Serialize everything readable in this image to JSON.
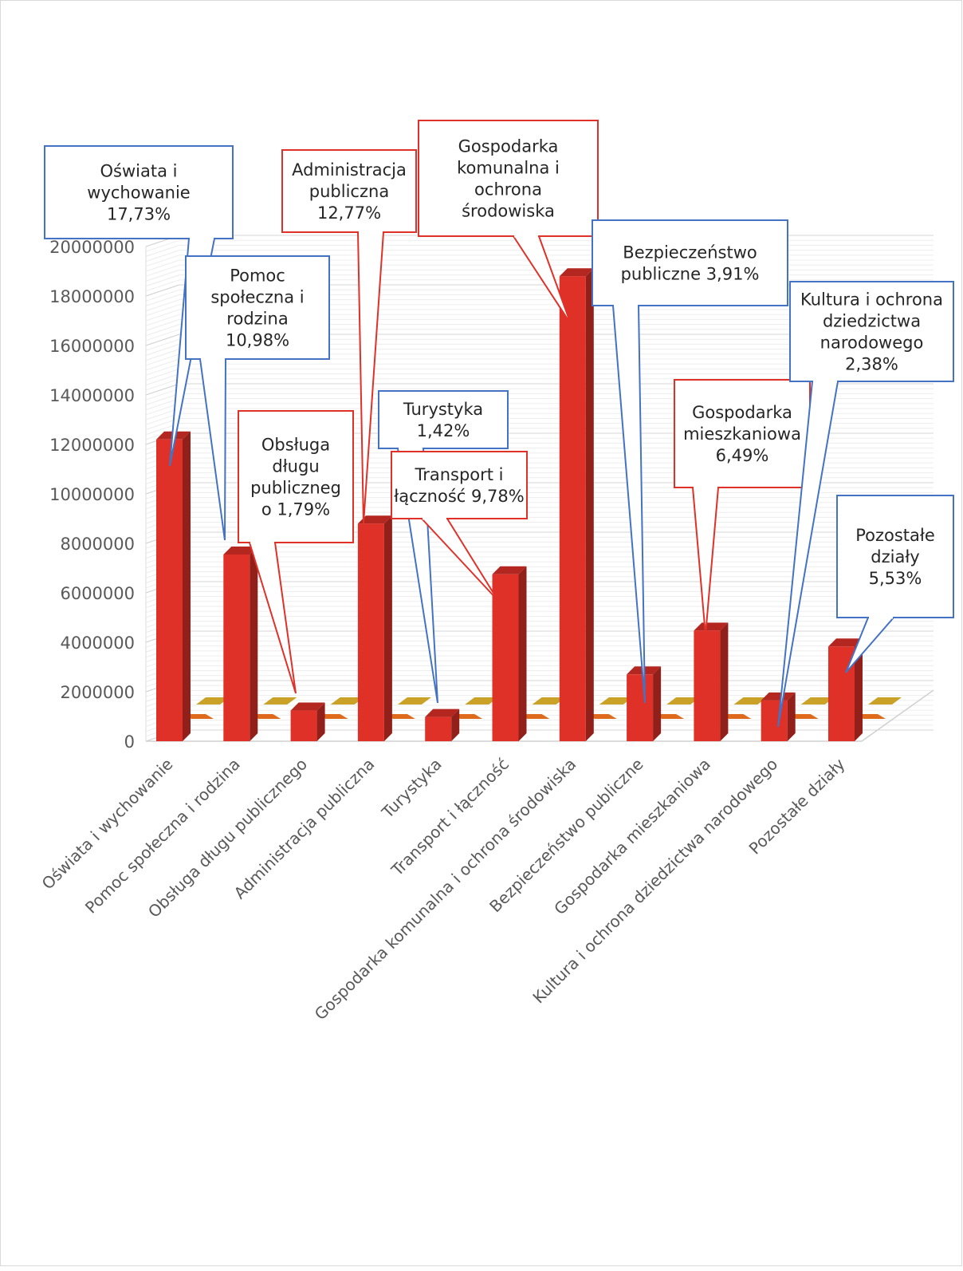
{
  "chart_data": {
    "type": "bar",
    "title": "",
    "xlabel": "",
    "ylabel": "",
    "ylim": [
      0,
      20000000
    ],
    "yticks": [
      0,
      2000000,
      4000000,
      6000000,
      8000000,
      10000000,
      12000000,
      14000000,
      16000000,
      18000000,
      20000000
    ],
    "ytick_labels": [
      "0",
      "2000000",
      "4000000",
      "6000000",
      "8000000",
      "10000000",
      "12000000",
      "14000000",
      "16000000",
      "18000000",
      "20000000"
    ],
    "grid": true,
    "style": "3d-column",
    "categories": [
      "Oświata i wychowanie",
      "Pomoc społeczna i rodzina",
      "Obsługa długu publicznego",
      "Administracja publiczna",
      "Turystyka",
      "Transport i łączność",
      "Gospodarka komunalna i ochrona środowiska",
      "Bezpieczeństwo publiczne",
      "Gospodarka mieszkaniowa",
      "Kultura i ochrona dziedzictwa narodowego",
      "Pozostałe działy"
    ],
    "series": [
      {
        "color": "#e03128",
        "values": [
          12200000,
          7550000,
          1240000,
          8800000,
          980000,
          6750000,
          18800000,
          2700000,
          4470000,
          1650000,
          3830000
        ]
      },
      {
        "color": "#c9a227",
        "values": [
          0,
          0,
          0,
          0,
          0,
          0,
          0,
          0,
          0,
          0,
          0
        ]
      },
      {
        "color": "#e06a1b",
        "values": [
          0,
          0,
          0,
          0,
          0,
          0,
          0,
          0,
          0,
          0,
          0
        ]
      }
    ],
    "callouts": [
      {
        "category_index": 0,
        "border": "#4472c4",
        "lines": [
          "Oświata i",
          "wychowanie",
          "17,73%"
        ]
      },
      {
        "category_index": 1,
        "border": "#4472c4",
        "lines": [
          "Pomoc",
          "społeczna i",
          "rodzina",
          "10,98%"
        ]
      },
      {
        "category_index": 2,
        "border": "#e03128",
        "lines": [
          "Obsługa",
          "długu",
          "publiczneg",
          "o 1,79%"
        ]
      },
      {
        "category_index": 3,
        "border": "#e03128",
        "lines": [
          "Administracja",
          "publiczna",
          "12,77%"
        ]
      },
      {
        "category_index": 4,
        "border": "#4472c4",
        "lines": [
          "Turystyka",
          "1,42%"
        ]
      },
      {
        "category_index": 5,
        "border": "#e03128",
        "lines": [
          "Transport i",
          "łączność 9,78%"
        ]
      },
      {
        "category_index": 6,
        "border": "#e03128",
        "lines": [
          "Gospodarka",
          "komunalna  i",
          "ochrona",
          "środowiska"
        ]
      },
      {
        "category_index": 7,
        "border": "#4472c4",
        "lines": [
          "Bezpieczeństwo",
          "publiczne 3,91%"
        ]
      },
      {
        "category_index": 8,
        "border": "#e03128",
        "lines": [
          "Gospodarka",
          "mieszkaniowa",
          "6,49%"
        ]
      },
      {
        "category_index": 9,
        "border": "#4472c4",
        "lines": [
          "Kultura i ochrona",
          "dziedzictwa",
          "narodowego",
          "2,38%"
        ]
      },
      {
        "category_index": 10,
        "border": "#4472c4",
        "lines": [
          "Pozostałe",
          "działy",
          "5,53%"
        ]
      }
    ]
  }
}
